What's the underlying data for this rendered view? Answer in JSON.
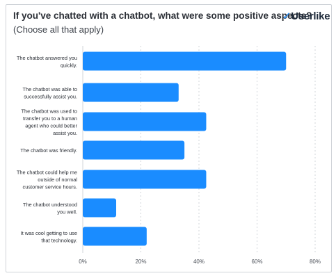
{
  "header": {
    "title": "If you've chatted with a chatbot, what were some positive aspects?",
    "subtitle": "(Choose all that apply)",
    "logo_text": "Userlike"
  },
  "colors": {
    "bar": "#1a8cff",
    "grid": "#d0d4d9",
    "text": "#2b2f36"
  },
  "chart_data": {
    "type": "bar",
    "orientation": "horizontal",
    "title": "If you've chatted with a chatbot, what were some positive aspects?",
    "subtitle": "(Choose all that apply)",
    "categories": [
      [
        "The chatbot answered you",
        "quickly."
      ],
      [
        "The chatbot was able to",
        "successfully assist you."
      ],
      [
        "The chatbot was used to",
        "transfer you to a human",
        "agent who could better",
        "assist you."
      ],
      [
        "The chatbot was friendly."
      ],
      [
        "The chatbot could help me",
        "outside of normal",
        "customer service hours."
      ],
      [
        "The chatbot understood",
        "you well."
      ],
      [
        "It was cool getting to use",
        "that technology."
      ]
    ],
    "values": [
      70,
      33,
      42.5,
      35,
      42.5,
      11.5,
      22
    ],
    "unit": "%",
    "xlim": [
      0,
      80
    ],
    "xticks": [
      "0%",
      "20%",
      "40%",
      "60%",
      "80%"
    ],
    "xtick_values": [
      0,
      20,
      40,
      60,
      80
    ],
    "grid": "vertical dashed"
  }
}
